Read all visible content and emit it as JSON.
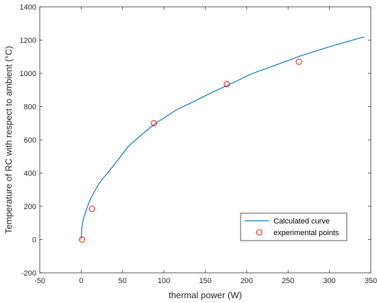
{
  "chart_data": {
    "type": "line",
    "title": "",
    "xlabel": "thermal power (W)",
    "ylabel": "Temperature of RC with respect to ambient (°C)",
    "xlim": [
      -50,
      350
    ],
    "ylim": [
      -200,
      1400
    ],
    "xticks": [
      -50,
      0,
      50,
      100,
      150,
      200,
      250,
      300,
      350
    ],
    "yticks": [
      -200,
      0,
      200,
      400,
      600,
      800,
      1000,
      1200,
      1400
    ],
    "grid": false,
    "legend_position": "bottom-right",
    "series": [
      {
        "name": "Calculated curve",
        "style": "line",
        "color": "#0072bd",
        "x": [
          0,
          1,
          3,
          6,
          10,
          15,
          22,
          30,
          40,
          57,
          75,
          90,
          115,
          140,
          160,
          180,
          205,
          235,
          265,
          300,
          342
        ],
        "y": [
          0,
          80,
          130,
          175,
          230,
          280,
          340,
          390,
          450,
          560,
          640,
          700,
          780,
          840,
          890,
          935,
          995,
          1050,
          1105,
          1160,
          1220
        ]
      },
      {
        "name": "experimental points",
        "style": "marker",
        "marker": "circle",
        "color": "#ff0000",
        "x": [
          1,
          13,
          88,
          176,
          263
        ],
        "y": [
          0,
          185,
          700,
          935,
          1070
        ]
      }
    ]
  }
}
